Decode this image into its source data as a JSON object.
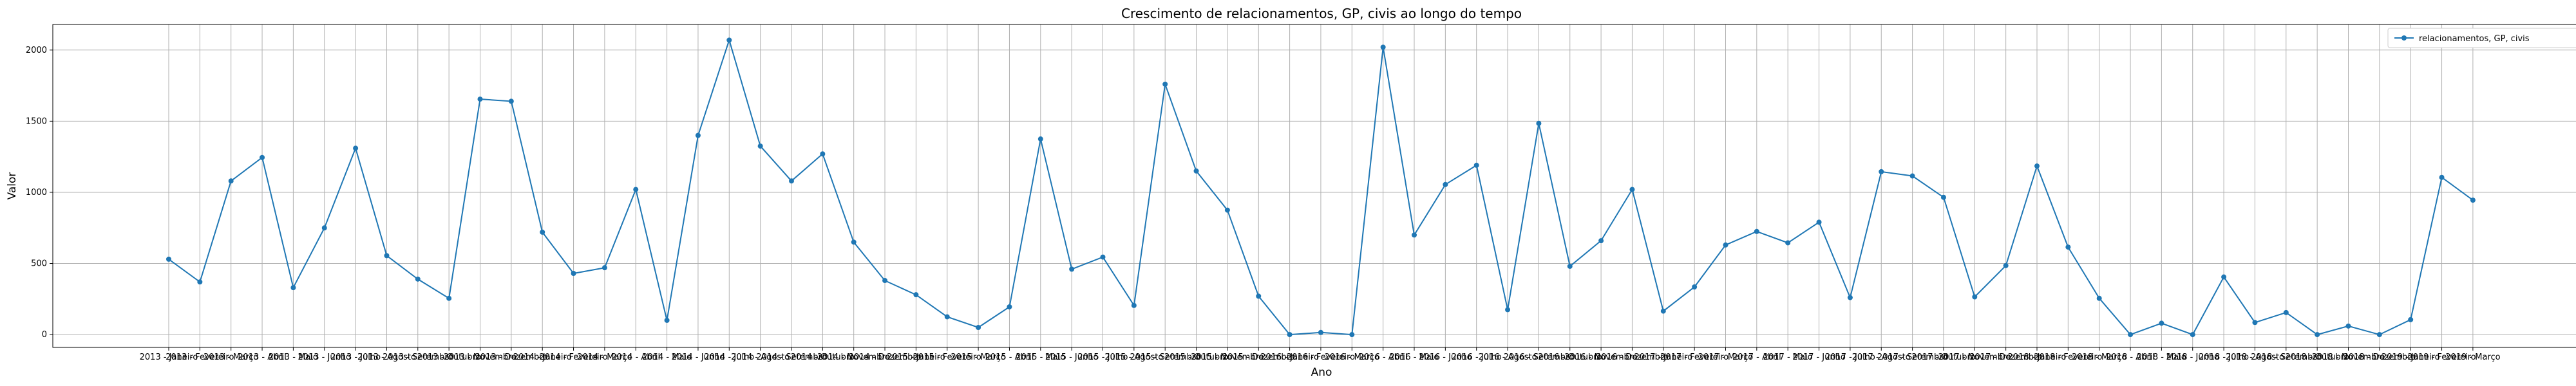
{
  "chart_data": {
    "type": "line",
    "title": "Crescimento de relacionamentos, GP, civis ao longo do tempo",
    "xlabel": "Ano",
    "ylabel": "Valor",
    "ylim": [
      -90,
      2180
    ],
    "yticks": [
      0,
      500,
      1000,
      1500,
      2000
    ],
    "grid": true,
    "legend_position": "top-right",
    "colors": {
      "series": "#1f77b4",
      "grid": "#b0b0b0"
    },
    "categories": [
      "2013 - Janeiro",
      "2013 - Fevereiro",
      "2013 - Março",
      "2013 - Abril",
      "2013 - Maio",
      "2013 - Junho",
      "2013 - Julho",
      "2013 - Agosto",
      "2013 - Setembro",
      "2013 - Outubro",
      "2013 - Novembro",
      "2013 - Dezembro",
      "2014 - Janeiro",
      "2014 - Fevereiro",
      "2014 - Março",
      "2014 - Abril",
      "2014 - Maio",
      "2014 - Junho",
      "2014 - Julho",
      "2014 - Agosto",
      "2014 - Setembro",
      "2014 - Outubro",
      "2014 - Novembro",
      "2014 - Dezembro",
      "2015 - Janeiro",
      "2015 - Fevereiro",
      "2015 - Março",
      "2015 - Abril",
      "2015 - Maio",
      "2015 - Junho",
      "2015 - Julho",
      "2015 - Agosto",
      "2015 - Setembro",
      "2015 - Outubro",
      "2015 - Novembro",
      "2015 - Dezembro",
      "2016 - Janeiro",
      "2016 - Fevereiro",
      "2016 - Março",
      "2016 - Abril",
      "2016 - Maio",
      "2016 - Junho",
      "2016 - Julho",
      "2016 - Agosto",
      "2016 - Setembro",
      "2016 - Outubro",
      "2016 - Novembro",
      "2016 - Dezembro",
      "2017 - Janeiro",
      "2017 - Fevereiro",
      "2017 - Março",
      "2017 - Abril",
      "2017 - Maio",
      "2017 - Junho",
      "2017 - Julho",
      "2017 - Agosto",
      "2017 - Setembro",
      "2017 - Outubro",
      "2017 - Novembro",
      "2017 - Dezembro",
      "2018 - Janeiro",
      "2018 - Fevereiro",
      "2018 - Março",
      "2018 - Abril",
      "2018 - Maio",
      "2018 - Junho",
      "2018 - Julho",
      "2018 - Agosto",
      "2018 - Setembro",
      "2018 - Outubro",
      "2018 - Novembro",
      "2018 - Dezembro",
      "2019 - Janeiro",
      "2019 - Fevereiro",
      "2019 - Março"
    ],
    "series": [
      {
        "name": "relacionamentos, GP, civis",
        "values": [
          530,
          370,
          1080,
          1245,
          330,
          750,
          1310,
          555,
          390,
          255,
          1655,
          1640,
          720,
          430,
          470,
          1020,
          100,
          1400,
          2070,
          1325,
          1080,
          1270,
          650,
          380,
          280,
          125,
          50,
          195,
          1375,
          460,
          545,
          205,
          1760,
          1150,
          875,
          270,
          0,
          15,
          0,
          2020,
          700,
          1055,
          1190,
          175,
          1485,
          480,
          660,
          1020,
          165,
          335,
          630,
          725,
          645,
          790,
          260,
          1145,
          1115,
          965,
          265,
          485,
          1185,
          615,
          255,
          0,
          80,
          0,
          405,
          85,
          155,
          0,
          60,
          0,
          105,
          1105,
          945
        ]
      }
    ]
  }
}
